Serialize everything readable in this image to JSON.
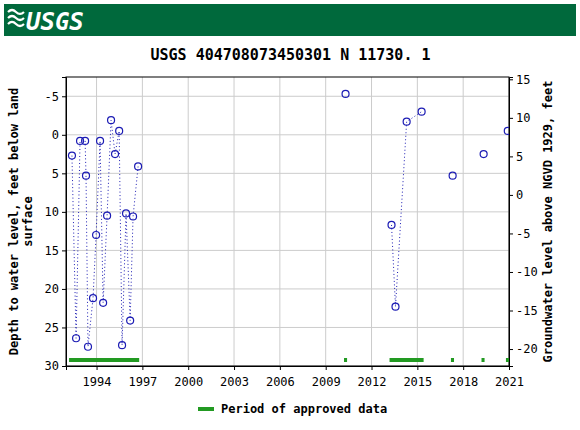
{
  "chart_data": {
    "type": "line",
    "logo": "USGS",
    "title": "USGS 404708073450301 N 11730. 1",
    "y_label": [
      "Depth to water level, feet below land",
      "surface"
    ],
    "y2_label": "Groundwater level above NGVD 1929, feet",
    "xlim": [
      1992,
      2021
    ],
    "xticks": [
      1994,
      1997,
      2000,
      2003,
      2006,
      2009,
      2012,
      2015,
      2018,
      2021
    ],
    "ylim": [
      30,
      -7.5
    ],
    "yticks": [
      -5,
      0,
      5,
      10,
      15,
      20,
      25,
      30
    ],
    "y2lim": [
      -22.2,
      15.3
    ],
    "y2ticks": [
      15,
      10,
      5,
      0,
      -5,
      -10,
      -15,
      -20
    ],
    "grid": true,
    "x": [
      1992.39,
      1992.66,
      1992.92,
      1993.25,
      1993.31,
      1993.44,
      1993.77,
      1993.97,
      1994.23,
      1994.43,
      1994.69,
      1994.95,
      1995.21,
      1995.48,
      1995.67,
      1995.93,
      1996.2,
      1996.39,
      1996.72,
      null,
      2010.3,
      null,
      2013.31,
      2013.57,
      2014.3,
      2015.28,
      null,
      2017.31,
      null,
      2019.34,
      null,
      2020.92
    ],
    "series": [
      {
        "color": "#1c1cb4",
        "marker": "circle",
        "line_style": "dotted",
        "values": [
          2.7,
          26.4,
          0.8,
          0.8,
          5.3,
          27.5,
          21.2,
          13.0,
          0.8,
          21.8,
          10.5,
          -1.9,
          2.5,
          -0.5,
          27.3,
          10.2,
          24.1,
          10.6,
          4.1,
          null,
          -5.3,
          null,
          11.7,
          22.3,
          -1.7,
          -3.0,
          null,
          5.3,
          null,
          2.5,
          null,
          -0.5
        ]
      }
    ],
    "approved": {
      "name": "Period of approved data",
      "color": "#229a22",
      "periods": [
        [
          1992.2,
          1996.79
        ],
        [
          2010.2,
          2010.4
        ],
        [
          2013.18,
          2015.41
        ],
        [
          2017.2,
          2017.4
        ],
        [
          2019.2,
          2019.4
        ],
        [
          2020.8,
          2021
        ]
      ]
    },
    "legend": "bottom"
  }
}
